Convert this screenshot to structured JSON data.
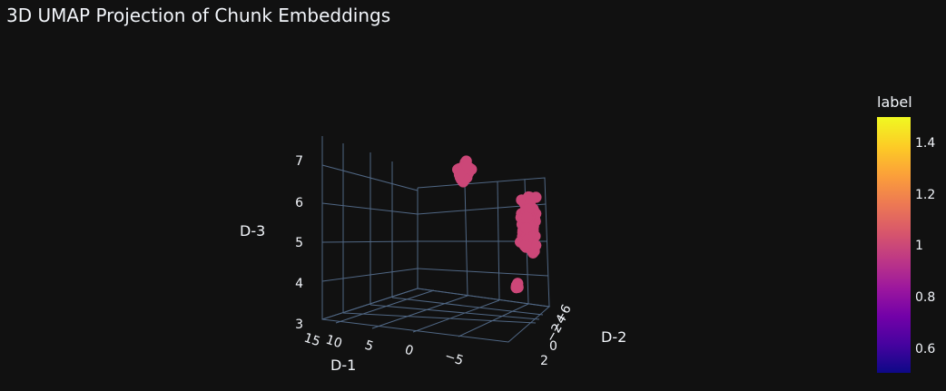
{
  "title": "3D UMAP Projection of Chunk Embeddings",
  "colors": {
    "background": "#111111",
    "text": "#f2f5fa",
    "grid": "#506784",
    "point": "#cc4778"
  },
  "chart_data": {
    "type": "scatter",
    "title": "3D UMAP Projection of Chunk Embeddings",
    "projection": "3d",
    "axes": {
      "x": {
        "label": "D-1",
        "ticks": [
          "15",
          "10",
          "5",
          "0",
          "−5"
        ],
        "range": [
          15,
          -8
        ]
      },
      "y": {
        "label": "D-2",
        "ticks": [
          "−6",
          "−4",
          "−2",
          "0",
          "2"
        ],
        "range": [
          -7,
          3
        ]
      },
      "z": {
        "label": "D-3",
        "ticks": [
          "3",
          "4",
          "5",
          "6",
          "7"
        ],
        "range": [
          3,
          7.5
        ]
      }
    },
    "colorbar": {
      "title": "label",
      "ticks": [
        "1.4",
        "1.2",
        "1",
        "0.8",
        "0.6"
      ],
      "range": [
        0.5,
        1.5
      ],
      "colorscale": [
        "#0d0887",
        "#46039f",
        "#7201a8",
        "#9c179e",
        "#bd3786",
        "#d8576b",
        "#ed7953",
        "#fb9f3a",
        "#fdca26",
        "#f0f921"
      ]
    },
    "series": [
      {
        "label_value": 1,
        "clusters": [
          {
            "center": [
              7.5,
              -2.0,
              6.8
            ],
            "spread": [
              1.4,
              1.2,
              0.35
            ],
            "count": 35
          },
          {
            "center": [
              -2.5,
              -3.5,
              5.7
            ],
            "spread": [
              1.0,
              1.6,
              0.9
            ],
            "count": 150
          },
          {
            "center": [
              2.0,
              1.5,
              3.8
            ],
            "spread": [
              0.3,
              0.3,
              0.08
            ],
            "count": 8
          }
        ]
      }
    ]
  }
}
